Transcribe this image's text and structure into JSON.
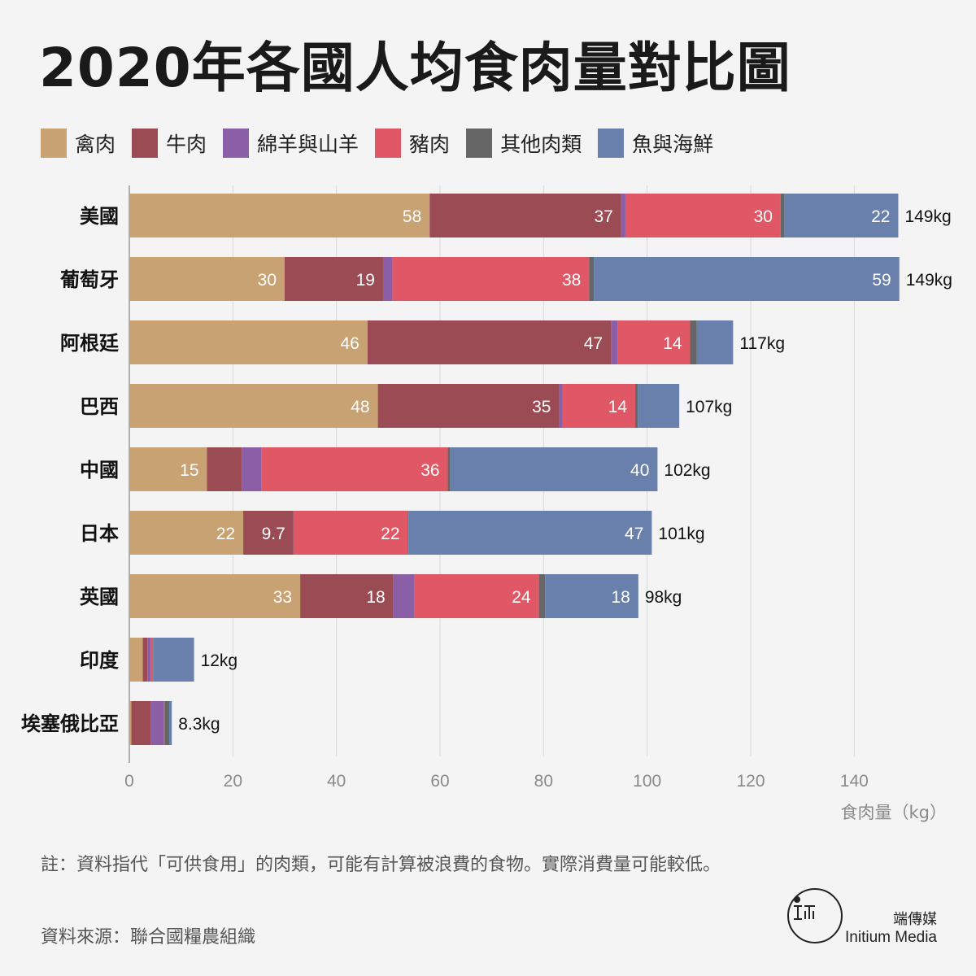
{
  "title": "2020年各國人均食肉量對比圖",
  "legend": [
    {
      "label": "禽肉",
      "color": "#c8a273"
    },
    {
      "label": "牛肉",
      "color": "#9b4b54"
    },
    {
      "label": "綿羊與山羊",
      "color": "#8a5fa6"
    },
    {
      "label": "豬肉",
      "color": "#e05766"
    },
    {
      "label": "其他肉類",
      "color": "#666666"
    },
    {
      "label": "魚與海鮮",
      "color": "#6880ab"
    }
  ],
  "chart_data": {
    "type": "bar",
    "orientation": "horizontal",
    "stacked": true,
    "categories": [
      "美國",
      "葡萄牙",
      "阿根廷",
      "巴西",
      "中國",
      "日本",
      "英國",
      "印度",
      "埃塞俄比亞"
    ],
    "series": [
      {
        "name": "禽肉",
        "color": "#c8a273",
        "values": [
          58,
          30,
          46,
          48,
          15,
          22,
          33,
          2.6,
          0.4
        ],
        "labels": [
          "58",
          "30",
          "46",
          "48",
          "15",
          "22",
          "33",
          "",
          ""
        ]
      },
      {
        "name": "牛肉",
        "color": "#9b4b54",
        "values": [
          37,
          19,
          47,
          35,
          6.7,
          9.7,
          18,
          0.9,
          3.8
        ],
        "labels": [
          "37",
          "19",
          "47",
          "35",
          "",
          "9.7",
          "18",
          "",
          ""
        ]
      },
      {
        "name": "綿羊與山羊",
        "color": "#8a5fa6",
        "values": [
          0.8,
          1.8,
          1.3,
          0.7,
          3.8,
          0.1,
          4.1,
          0.6,
          2.5
        ],
        "labels": [
          "",
          "",
          "",
          "",
          "",
          "",
          "",
          "",
          ""
        ]
      },
      {
        "name": "豬肉",
        "color": "#e05766",
        "values": [
          30,
          38,
          14,
          14,
          36,
          22,
          24,
          0.4,
          0.1
        ],
        "labels": [
          "30",
          "38",
          "14",
          "14",
          "36",
          "22",
          "24",
          "",
          ""
        ]
      },
      {
        "name": "其他肉類",
        "color": "#666666",
        "values": [
          0.7,
          0.9,
          1.3,
          0.5,
          0.5,
          0.1,
          1.2,
          0.1,
          0.9
        ],
        "labels": [
          "",
          "",
          "",
          "",
          "",
          "",
          "",
          "",
          ""
        ]
      },
      {
        "name": "魚與海鮮",
        "color": "#6880ab",
        "values": [
          22,
          59,
          7.0,
          8.0,
          40,
          47,
          18,
          7.9,
          0.5
        ],
        "labels": [
          "22",
          "59",
          "",
          "",
          "40",
          "47",
          "18",
          "",
          ""
        ]
      }
    ],
    "totals": [
      "149kg",
      "149kg",
      "117kg",
      "107kg",
      "102kg",
      "101kg",
      "98kg",
      "12kg",
      "8.3kg"
    ],
    "xlim": [
      0,
      150
    ],
    "xticks": [
      0,
      20,
      40,
      60,
      80,
      100,
      120,
      140
    ],
    "xlabel": "食肉量（kg）",
    "grid": true
  },
  "note": "註：資料指代「可供食用」的肉類，可能有計算被浪費的食物。實際消費量可能較低。",
  "source": "資料來源：聯合國糧農組織",
  "brand": {
    "name_cn": "端傳媒",
    "name_en": "Initium Media"
  }
}
